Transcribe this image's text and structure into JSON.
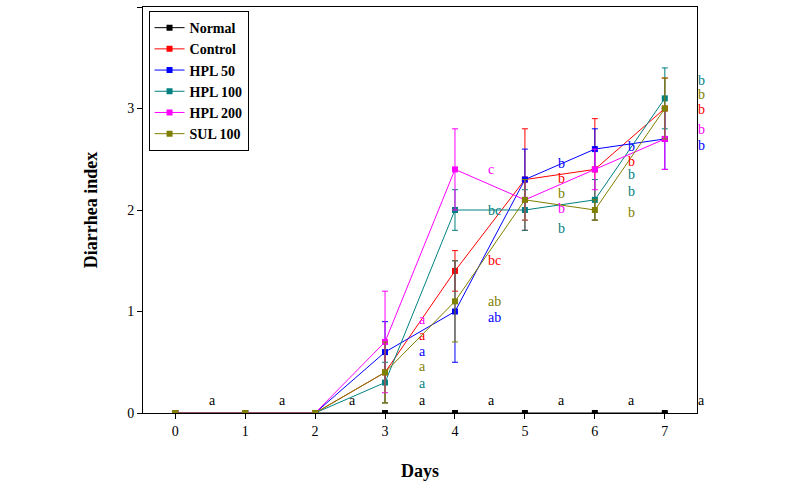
{
  "chart_data": {
    "type": "line",
    "x_label": "Days",
    "y_label": "Diarrhea index",
    "x": [
      0,
      1,
      2,
      3,
      4,
      5,
      6,
      7
    ],
    "xlim": [
      -0.46,
      7.46
    ],
    "xticks": [
      0,
      1,
      2,
      3,
      4,
      5,
      6,
      7
    ],
    "ylim": [
      0,
      4
    ],
    "yticks": [
      0,
      1,
      2,
      3,
      4
    ],
    "grid": false,
    "legend": "upper left",
    "marker": "square",
    "series": [
      {
        "name": "Normal",
        "color": "#000000",
        "values": [
          0,
          0,
          0,
          0,
          0,
          0,
          0,
          0
        ],
        "error": [
          0,
          0,
          0,
          0,
          0,
          0,
          0,
          0
        ]
      },
      {
        "name": "Control",
        "color": "#ff0000",
        "values": [
          0,
          0,
          0,
          0.4,
          1.4,
          2.3,
          2.4,
          3.0
        ],
        "error": [
          0,
          0,
          0,
          0.3,
          0.2,
          0.5,
          0.5,
          0.3
        ]
      },
      {
        "name": "HPL 50",
        "color": "#0000ff",
        "values": [
          0,
          0,
          0,
          0.6,
          1.0,
          2.3,
          2.6,
          2.7
        ],
        "error": [
          0,
          0,
          0,
          0.3,
          0.5,
          0.3,
          0.2,
          0.3
        ]
      },
      {
        "name": "HPL 100",
        "color": "#008080",
        "values": [
          0,
          0,
          0,
          0.3,
          2.0,
          2.0,
          2.1,
          3.1
        ],
        "error": [
          0,
          0,
          0,
          0.2,
          0.2,
          0.2,
          0.2,
          0.3
        ]
      },
      {
        "name": "HPL 200",
        "color": "#ff00ff",
        "values": [
          0,
          0,
          0,
          0.7,
          2.4,
          2.1,
          2.4,
          2.7
        ],
        "error": [
          0,
          0,
          0,
          0.5,
          0.4,
          0.2,
          0.2,
          0.3
        ]
      },
      {
        "name": "SUL 100",
        "color": "#808000",
        "values": [
          0,
          0,
          0,
          0.4,
          1.1,
          2.1,
          2.0,
          3.0
        ],
        "error": [
          0,
          0,
          0,
          0.3,
          0.4,
          0.2,
          0.1,
          0.3
        ]
      }
    ],
    "annotations": [
      {
        "x": 0.45,
        "y": 0.12,
        "text": "a",
        "color": "#000000"
      },
      {
        "x": 1.45,
        "y": 0.12,
        "text": "a",
        "color": "#000000"
      },
      {
        "x": 2.45,
        "y": 0.12,
        "text": "a",
        "color": "#000000"
      },
      {
        "x": 3.45,
        "y": 0.12,
        "text": "a",
        "color": "#000000"
      },
      {
        "x": 4.45,
        "y": 0.12,
        "text": "a",
        "color": "#000000"
      },
      {
        "x": 5.45,
        "y": 0.12,
        "text": "a",
        "color": "#000000"
      },
      {
        "x": 6.45,
        "y": 0.12,
        "text": "a",
        "color": "#000000"
      },
      {
        "x": 7.45,
        "y": 0.12,
        "text": "a",
        "color": "#000000"
      },
      {
        "x": 3.45,
        "y": 0.92,
        "text": "a",
        "color": "#ff00ff"
      },
      {
        "x": 3.45,
        "y": 0.76,
        "text": "a",
        "color": "#ff0000"
      },
      {
        "x": 3.45,
        "y": 0.61,
        "text": "a",
        "color": "#0000ff"
      },
      {
        "x": 3.45,
        "y": 0.46,
        "text": "a",
        "color": "#808000"
      },
      {
        "x": 3.45,
        "y": 0.29,
        "text": "a",
        "color": "#008080"
      },
      {
        "x": 4.45,
        "y": 2.4,
        "text": "c",
        "color": "#ff00ff"
      },
      {
        "x": 4.45,
        "y": 2.0,
        "text": "bc",
        "color": "#008080"
      },
      {
        "x": 4.45,
        "y": 1.5,
        "text": "bc",
        "color": "#ff0000"
      },
      {
        "x": 4.45,
        "y": 1.1,
        "text": "ab",
        "color": "#808000"
      },
      {
        "x": 4.45,
        "y": 0.94,
        "text": "ab",
        "color": "#0000ff"
      },
      {
        "x": 5.45,
        "y": 2.46,
        "text": "b",
        "color": "#0000ff"
      },
      {
        "x": 5.45,
        "y": 2.31,
        "text": "b",
        "color": "#ff0000"
      },
      {
        "x": 5.45,
        "y": 2.16,
        "text": "b",
        "color": "#808000"
      },
      {
        "x": 5.45,
        "y": 2.01,
        "text": "b",
        "color": "#ff00ff"
      },
      {
        "x": 5.45,
        "y": 1.82,
        "text": "b",
        "color": "#008080"
      },
      {
        "x": 6.45,
        "y": 2.63,
        "text": "b",
        "color": "#0000ff"
      },
      {
        "x": 6.45,
        "y": 2.48,
        "text": "b",
        "color": "#ff0000"
      },
      {
        "x": 6.45,
        "y": 2.35,
        "text": "b",
        "color": "#008080"
      },
      {
        "x": 6.45,
        "y": 2.18,
        "text": "b",
        "color": "#008080"
      },
      {
        "x": 6.45,
        "y": 1.98,
        "text": "b",
        "color": "#808000"
      },
      {
        "x": 7.45,
        "y": 3.28,
        "text": "b",
        "color": "#008080"
      },
      {
        "x": 7.45,
        "y": 3.14,
        "text": "b",
        "color": "#808000"
      },
      {
        "x": 7.45,
        "y": 2.99,
        "text": "b",
        "color": "#ff0000"
      },
      {
        "x": 7.45,
        "y": 2.79,
        "text": "b",
        "color": "#ff00ff"
      },
      {
        "x": 7.45,
        "y": 2.64,
        "text": "b",
        "color": "#0000ff"
      }
    ]
  }
}
